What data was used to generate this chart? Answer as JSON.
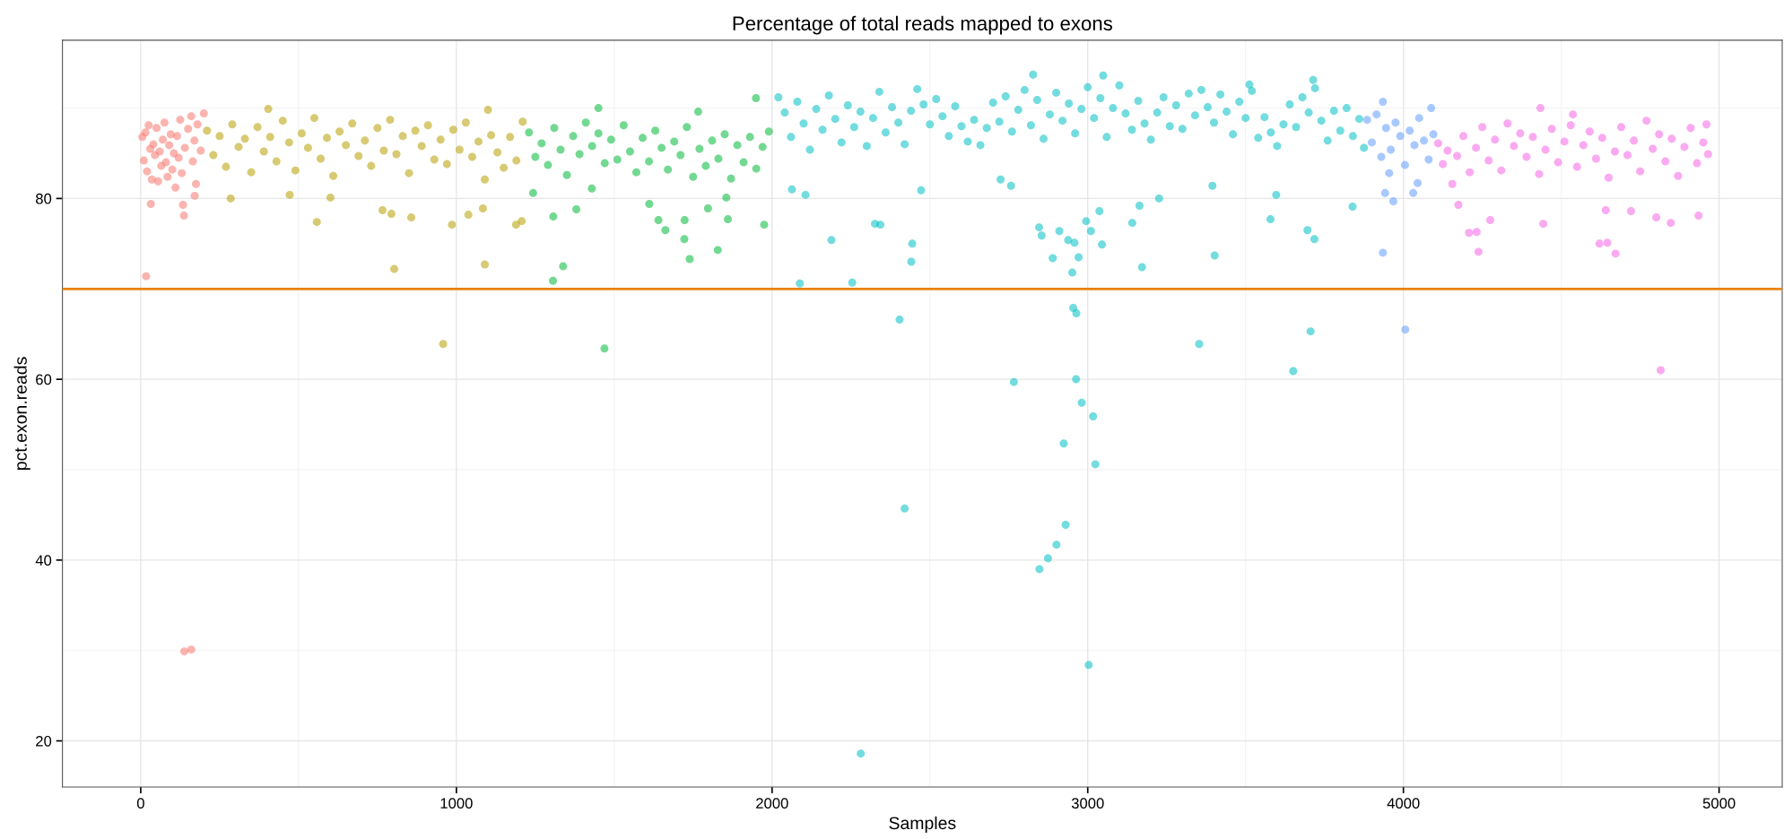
{
  "chart_data": {
    "type": "scatter",
    "title": "Percentage of total reads mapped to exons",
    "xlabel": "Samples",
    "ylabel": "pct.exon.reads",
    "xlim": [
      -248,
      5200
    ],
    "ylim": [
      14.9,
      97.5
    ],
    "xticks": [
      0,
      1000,
      2000,
      3000,
      4000,
      5000
    ],
    "yticks": [
      20,
      40,
      60,
      80
    ],
    "grid": true,
    "marker": "circle",
    "ref_lines": [
      {
        "axis": "y",
        "value": 70,
        "color": "#e8830a"
      }
    ],
    "series": [
      {
        "color": "#f8766d",
        "x": [
          5,
          10,
          15,
          20,
          25,
          30,
          35,
          40,
          45,
          50,
          55,
          60,
          65,
          70,
          75,
          80,
          85,
          90,
          95,
          100,
          105,
          110,
          115,
          120,
          125,
          130,
          140,
          150,
          160,
          165,
          170,
          175,
          180,
          190,
          200,
          17,
          138,
          160,
          137,
          32,
          134,
          171
        ],
        "values": [
          86.8,
          84.2,
          87.3,
          83.0,
          88.1,
          85.5,
          82.1,
          86.0,
          84.8,
          87.8,
          81.9,
          85.2,
          83.6,
          86.5,
          88.4,
          84.0,
          82.4,
          85.9,
          87.1,
          83.2,
          85.0,
          81.2,
          86.9,
          84.5,
          88.7,
          82.8,
          85.6,
          87.7,
          89.1,
          84.1,
          86.4,
          81.6,
          88.2,
          85.3,
          89.4,
          71.4,
          29.9,
          30.1,
          78.1,
          79.4,
          79.3,
          80.3
        ]
      },
      {
        "color": "#b79f00",
        "x": [
          210,
          230,
          250,
          270,
          290,
          310,
          330,
          350,
          370,
          390,
          410,
          430,
          450,
          470,
          490,
          510,
          530,
          550,
          570,
          590,
          610,
          630,
          650,
          670,
          690,
          710,
          730,
          750,
          770,
          790,
          810,
          830,
          850,
          870,
          890,
          910,
          930,
          950,
          970,
          990,
          1010,
          1030,
          1050,
          1070,
          1090,
          1110,
          1130,
          1150,
          1170,
          1190,
          1210,
          558,
          472,
          601,
          766,
          794,
          857,
          986,
          1038,
          1084,
          803,
          1090,
          958,
          1189,
          1207,
          285,
          404,
          1100
        ],
        "values": [
          87.5,
          84.8,
          86.9,
          83.5,
          88.2,
          85.7,
          86.6,
          82.9,
          87.9,
          85.2,
          86.8,
          84.1,
          88.6,
          86.2,
          83.1,
          87.2,
          85.6,
          88.9,
          84.4,
          86.7,
          82.5,
          87.4,
          85.9,
          88.3,
          84.7,
          86.4,
          83.6,
          87.8,
          85.3,
          88.7,
          84.9,
          86.9,
          82.8,
          87.5,
          85.8,
          88.1,
          84.3,
          86.5,
          83.8,
          87.6,
          85.4,
          88.4,
          84.6,
          86.3,
          82.1,
          87.0,
          85.1,
          83.4,
          86.8,
          84.2,
          88.5,
          77.4,
          80.4,
          80.1,
          78.7,
          78.3,
          77.9,
          77.1,
          78.2,
          78.9,
          72.2,
          72.7,
          63.9,
          77.1,
          77.5,
          80.0,
          89.9,
          89.8
        ]
      },
      {
        "color": "#00ba38",
        "x": [
          1230,
          1250,
          1270,
          1290,
          1310,
          1330,
          1350,
          1370,
          1390,
          1410,
          1430,
          1450,
          1470,
          1490,
          1510,
          1530,
          1550,
          1570,
          1590,
          1610,
          1630,
          1650,
          1670,
          1690,
          1710,
          1730,
          1750,
          1770,
          1790,
          1810,
          1830,
          1850,
          1870,
          1890,
          1910,
          1930,
          1950,
          1970,
          1990,
          1243,
          1307,
          1306,
          1338,
          1380,
          1469,
          1450,
          1429,
          1611,
          1640,
          1662,
          1723,
          1722,
          1739,
          1828,
          1797,
          1860,
          1975,
          1949,
          1766,
          1855
        ],
        "values": [
          87.3,
          84.6,
          86.1,
          83.7,
          87.8,
          85.4,
          82.6,
          86.9,
          84.9,
          88.4,
          85.8,
          87.2,
          83.9,
          86.5,
          84.3,
          88.1,
          85.2,
          82.9,
          86.7,
          84.1,
          87.5,
          85.6,
          83.2,
          86.3,
          84.8,
          87.9,
          82.4,
          85.5,
          83.6,
          86.4,
          84.4,
          87.1,
          82.2,
          85.9,
          84.0,
          86.8,
          83.3,
          85.7,
          87.4,
          80.6,
          78.0,
          70.9,
          72.5,
          78.8,
          63.4,
          90.0,
          81.1,
          79.4,
          77.6,
          76.5,
          77.6,
          75.5,
          73.3,
          74.3,
          78.9,
          77.7,
          77.1,
          91.1,
          89.6,
          80.1
        ]
      },
      {
        "color": "#00bfc4",
        "x": [
          2020,
          2040,
          2060,
          2080,
          2100,
          2120,
          2140,
          2160,
          2180,
          2200,
          2220,
          2240,
          2260,
          2280,
          2300,
          2320,
          2340,
          2360,
          2380,
          2400,
          2420,
          2440,
          2460,
          2480,
          2500,
          2520,
          2540,
          2560,
          2580,
          2600,
          2620,
          2640,
          2660,
          2680,
          2700,
          2720,
          2740,
          2760,
          2780,
          2800,
          2820,
          2840,
          2860,
          2880,
          2900,
          2920,
          2940,
          2960,
          2980,
          3000,
          3020,
          3040,
          3060,
          3080,
          3100,
          3120,
          3140,
          3160,
          3180,
          3200,
          3220,
          3240,
          3260,
          3280,
          3300,
          3320,
          3340,
          3360,
          3380,
          3400,
          3420,
          3440,
          3460,
          3480,
          3500,
          3520,
          3540,
          3560,
          3580,
          3600,
          3620,
          3640,
          3660,
          3680,
          3700,
          3720,
          3740,
          3760,
          3780,
          3800,
          3820,
          3840,
          3860,
          3875,
          2088,
          2254,
          2404,
          2420,
          2281,
          2188,
          2326,
          2343,
          2444,
          2441,
          2766,
          2847,
          2874,
          2901,
          2930,
          2924,
          3017,
          2981,
          2963,
          3024,
          3003,
          2954,
          2964,
          3353,
          2951,
          2971,
          2889,
          2910,
          2938,
          2958,
          2846,
          2854,
          2995,
          3010,
          3045,
          3037,
          3172,
          3141,
          3164,
          3226,
          2724,
          2757,
          2472,
          2063,
          2106,
          2827,
          3049,
          3402,
          3706,
          3651,
          3579,
          3696,
          3718,
          3597,
          3839,
          3714,
          3512,
          3395
        ],
        "values": [
          91.2,
          89.5,
          86.8,
          90.7,
          88.3,
          85.4,
          89.9,
          87.6,
          91.4,
          88.8,
          86.2,
          90.3,
          87.9,
          89.6,
          85.8,
          88.9,
          91.8,
          87.3,
          90.1,
          88.4,
          86.0,
          89.7,
          92.1,
          90.4,
          88.2,
          91.0,
          89.1,
          86.9,
          90.2,
          88.0,
          86.3,
          88.7,
          85.9,
          87.8,
          90.6,
          88.5,
          91.3,
          87.4,
          89.8,
          92.0,
          88.1,
          90.9,
          86.6,
          89.3,
          91.7,
          88.6,
          90.5,
          87.2,
          89.9,
          92.3,
          88.9,
          91.1,
          86.8,
          90.0,
          92.5,
          89.4,
          87.6,
          90.8,
          88.3,
          86.5,
          89.5,
          91.2,
          88.0,
          90.3,
          87.7,
          91.6,
          89.2,
          92.0,
          90.1,
          88.4,
          91.5,
          89.6,
          87.1,
          90.7,
          88.9,
          91.9,
          86.7,
          89.0,
          87.3,
          85.8,
          88.2,
          90.4,
          87.9,
          91.2,
          89.5,
          92.2,
          88.6,
          86.4,
          89.7,
          87.5,
          90.0,
          86.9,
          88.8,
          85.6,
          70.6,
          70.7,
          66.6,
          45.7,
          18.6,
          75.4,
          77.2,
          77.1,
          75.0,
          73.0,
          59.7,
          39.0,
          40.2,
          41.7,
          43.9,
          52.9,
          55.9,
          57.4,
          60.0,
          50.6,
          28.4,
          67.9,
          67.3,
          63.9,
          71.8,
          73.5,
          73.4,
          76.4,
          75.4,
          75.1,
          76.8,
          75.9,
          77.5,
          76.4,
          74.9,
          78.6,
          72.4,
          77.3,
          79.2,
          80.0,
          82.1,
          81.4,
          80.9,
          81.0,
          80.4,
          93.7,
          93.6,
          73.7,
          65.3,
          60.9,
          77.7,
          76.5,
          75.5,
          80.4,
          79.1,
          93.1,
          92.6,
          81.4
        ]
      },
      {
        "color": "#619cff",
        "x": [
          3885,
          3900,
          3915,
          3930,
          3945,
          3960,
          3975,
          3990,
          4005,
          4020,
          4035,
          4050,
          4065,
          4080,
          4095,
          3955,
          4045,
          3935,
          4006,
          3968,
          3942,
          4031,
          4088,
          3935
        ],
        "values": [
          88.7,
          86.2,
          89.3,
          84.6,
          87.8,
          85.4,
          88.4,
          86.9,
          83.7,
          87.5,
          85.9,
          88.9,
          86.4,
          84.3,
          87.1,
          82.8,
          81.7,
          74.0,
          65.5,
          79.7,
          80.6,
          80.6,
          90.0,
          90.7
        ]
      },
      {
        "color": "#f564e3",
        "x": [
          4110,
          4125,
          4140,
          4155,
          4170,
          4190,
          4210,
          4230,
          4250,
          4270,
          4290,
          4310,
          4330,
          4350,
          4370,
          4390,
          4410,
          4430,
          4450,
          4470,
          4490,
          4510,
          4530,
          4550,
          4570,
          4590,
          4610,
          4630,
          4650,
          4670,
          4690,
          4710,
          4730,
          4750,
          4770,
          4790,
          4810,
          4830,
          4850,
          4870,
          4890,
          4910,
          4930,
          4950,
          4960,
          4965,
          4815,
          4238,
          4208,
          4232,
          4443,
          4621,
          4646,
          4672,
          4847,
          4935,
          4801,
          4721,
          4275,
          4434,
          4537,
          4174,
          4641
        ],
        "values": [
          86.1,
          83.8,
          85.3,
          81.6,
          84.7,
          86.9,
          82.9,
          85.6,
          87.9,
          84.2,
          86.5,
          83.1,
          88.3,
          85.8,
          87.2,
          84.6,
          86.8,
          82.7,
          85.4,
          87.7,
          84.0,
          86.3,
          88.1,
          83.5,
          85.9,
          87.4,
          84.4,
          86.7,
          82.3,
          85.2,
          87.9,
          84.8,
          86.4,
          83.0,
          88.6,
          85.5,
          87.1,
          84.1,
          86.6,
          82.5,
          85.7,
          87.8,
          83.9,
          86.2,
          88.2,
          84.9,
          61.0,
          74.1,
          76.2,
          76.3,
          77.2,
          75.0,
          75.1,
          73.9,
          77.3,
          78.1,
          77.9,
          78.6,
          77.6,
          90.0,
          89.3,
          79.3,
          78.7
        ]
      }
    ]
  }
}
